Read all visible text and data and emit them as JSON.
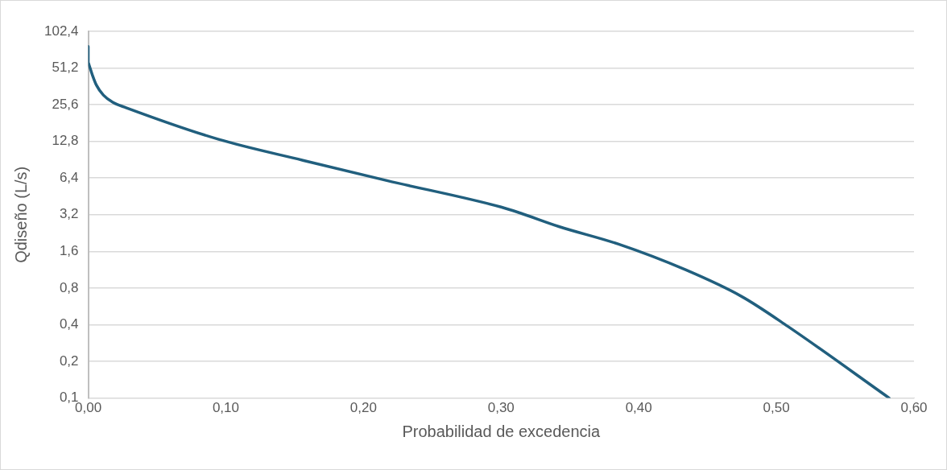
{
  "chart_data": {
    "type": "line",
    "xlabel": "Probabilidad de excedencia",
    "ylabel": "Qdiseño (L/s)",
    "log": "y",
    "grid": "y",
    "marker": "none",
    "line_style": "solid",
    "legend": false,
    "xlim": [
      0,
      0.6
    ],
    "xticks": [
      {
        "value": 0,
        "label": "0,00"
      },
      {
        "value": 0.1,
        "label": "0,10"
      },
      {
        "value": 0.2,
        "label": "0,20"
      },
      {
        "value": 0.3,
        "label": "0,30"
      },
      {
        "value": 0.4,
        "label": "0,40"
      },
      {
        "value": 0.5,
        "label": "0,50"
      },
      {
        "value": 0.6,
        "label": "0,60"
      }
    ],
    "ylim": [
      0.1,
      102.4
    ],
    "yticks": [
      {
        "value": 0.1,
        "label": "0,1"
      },
      {
        "value": 0.2,
        "label": "0,2"
      },
      {
        "value": 0.4,
        "label": "0,4"
      },
      {
        "value": 0.8,
        "label": "0,8"
      },
      {
        "value": 1.6,
        "label": "1,6"
      },
      {
        "value": 3.2,
        "label": "3,2"
      },
      {
        "value": 6.4,
        "label": "6,4"
      },
      {
        "value": 12.8,
        "label": "12,8"
      },
      {
        "value": 25.6,
        "label": "25,6"
      },
      {
        "value": 51.2,
        "label": "51,2"
      },
      {
        "value": 102.4,
        "label": "102,4"
      }
    ],
    "series": [
      {
        "color": "#215f7e",
        "x": [
          0,
          0,
          0.0006,
          0.003,
          0.006,
          0.011,
          0.018,
          0.0275,
          0.0948,
          0.156,
          0.217,
          0.3,
          0.314,
          0.342,
          0.385,
          0.434,
          0.475,
          0.508,
          0.582
        ],
        "values": [
          77,
          57,
          54.5,
          45,
          37,
          30.7,
          26.7,
          24.2,
          13.3,
          8.95,
          6.1,
          3.7,
          3.3,
          2.56,
          1.84,
          1.13,
          0.68,
          0.39,
          0.1
        ]
      }
    ]
  }
}
